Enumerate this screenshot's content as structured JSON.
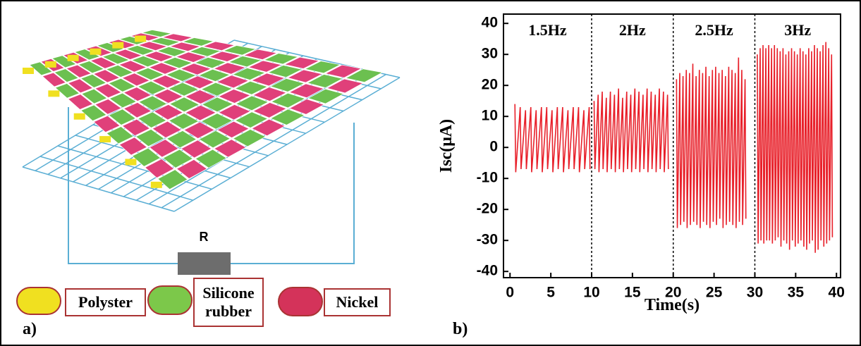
{
  "diagram": {
    "resistor_label": "R",
    "legend": [
      "Polyster",
      "Silicone rubber",
      "Nickel"
    ],
    "panel_a": "a)",
    "panel_b": "b)"
  },
  "chart_data": {
    "type": "line",
    "x_label": "Time(s)",
    "y_label": "Isc(μA)",
    "annotations": [
      "1.5Hz",
      "2Hz",
      "2.5Hz",
      "3Hz"
    ],
    "dividers": [
      10,
      20,
      30
    ],
    "xlim": [
      -0.8,
      40.5
    ],
    "ylim": [
      -42,
      43
    ],
    "xticks": [
      0,
      5,
      10,
      15,
      20,
      25,
      30,
      35,
      40
    ],
    "yticks": [
      -40,
      -30,
      -20,
      -10,
      0,
      10,
      20,
      30,
      40
    ],
    "series": [
      {
        "color": "#e8202a",
        "x": [
          0.6,
          0.7,
          1.25,
          1.35,
          1.9,
          2.0,
          2.55,
          2.65,
          3.2,
          3.3,
          3.85,
          3.95,
          4.5,
          4.6,
          5.15,
          5.25,
          5.8,
          5.9,
          6.45,
          6.55,
          7.1,
          7.2,
          7.75,
          7.85,
          8.4,
          8.5,
          9.05,
          9.15,
          9.7,
          9.8
        ],
        "values": [
          14,
          -8,
          13,
          -7,
          12,
          -7,
          13,
          -8,
          12,
          -7,
          13,
          -8,
          13,
          -7,
          12,
          -8,
          13,
          -7,
          13,
          -8,
          12,
          -7,
          13,
          -7,
          13,
          -8,
          12,
          -7,
          13,
          -7
        ]
      },
      {
        "color": "#e8202a",
        "x": [
          10.3,
          10.4,
          10.8,
          10.9,
          11.3,
          11.4,
          11.8,
          11.9,
          12.3,
          12.4,
          12.8,
          12.9,
          13.3,
          13.4,
          13.8,
          13.9,
          14.3,
          14.4,
          14.8,
          14.9,
          15.3,
          15.4,
          15.8,
          15.9,
          16.3,
          16.4,
          16.8,
          16.9,
          17.3,
          17.4,
          17.8,
          17.9,
          18.3,
          18.4,
          18.8,
          18.9,
          19.3,
          19.4
        ],
        "values": [
          15,
          -7,
          17,
          -8,
          18,
          -7,
          16,
          -8,
          18,
          -7,
          17,
          -8,
          19,
          -7,
          16,
          -8,
          18,
          -7,
          17,
          -8,
          19,
          -7,
          18,
          -8,
          17,
          -7,
          19,
          -8,
          18,
          -7,
          17,
          -8,
          19,
          -7,
          18,
          -8,
          17,
          -7
        ]
      },
      {
        "color": "#e8202a",
        "x": [
          20.4,
          20.5,
          20.8,
          20.9,
          21.2,
          21.3,
          21.6,
          21.7,
          22.0,
          22.1,
          22.4,
          22.5,
          22.8,
          22.9,
          23.2,
          23.3,
          23.6,
          23.7,
          24.0,
          24.1,
          24.4,
          24.5,
          24.8,
          24.9,
          25.2,
          25.3,
          25.6,
          25.7,
          26.0,
          26.1,
          26.4,
          26.5,
          26.8,
          26.9,
          27.2,
          27.3,
          27.6,
          27.7,
          28.0,
          28.1,
          28.4,
          28.5,
          28.8,
          28.9
        ],
        "values": [
          22,
          -26,
          24,
          -25,
          23,
          -24,
          25,
          -26,
          24,
          -25,
          27,
          -24,
          23,
          -25,
          25,
          -26,
          24,
          -24,
          26,
          -25,
          23,
          -26,
          25,
          -24,
          26,
          -25,
          24,
          -23,
          25,
          -26,
          23,
          -25,
          26,
          -24,
          25,
          -25,
          24,
          -26,
          29,
          -24,
          25,
          -25,
          22,
          -23
        ]
      },
      {
        "color": "#e8202a",
        "x": [
          30.3,
          30.4,
          30.65,
          30.75,
          31.0,
          31.1,
          31.35,
          31.45,
          31.7,
          31.8,
          32.05,
          32.15,
          32.4,
          32.5,
          32.75,
          32.85,
          33.1,
          33.2,
          33.45,
          33.55,
          33.8,
          33.9,
          34.15,
          34.25,
          34.5,
          34.6,
          34.85,
          34.95,
          35.2,
          35.3,
          35.55,
          35.65,
          35.9,
          36.0,
          36.25,
          36.35,
          36.6,
          36.7,
          36.95,
          37.05,
          37.3,
          37.4,
          37.65,
          37.75,
          38.0,
          38.1,
          38.35,
          38.45,
          38.7,
          38.8,
          39.05,
          39.15,
          39.4,
          39.5
        ],
        "values": [
          30,
          -31,
          32,
          -30,
          33,
          -31,
          32,
          -30,
          33,
          -30,
          32,
          -31,
          33,
          -30,
          32,
          -29,
          31,
          -32,
          32,
          -30,
          30,
          -31,
          31,
          -33,
          32,
          -30,
          31,
          -32,
          30,
          -31,
          32,
          -30,
          31,
          -32,
          30,
          -33,
          32,
          -31,
          31,
          -30,
          33,
          -34,
          32,
          -33,
          31,
          -30,
          33,
          -32,
          34,
          -31,
          32,
          -30,
          30,
          -29
        ]
      }
    ]
  }
}
